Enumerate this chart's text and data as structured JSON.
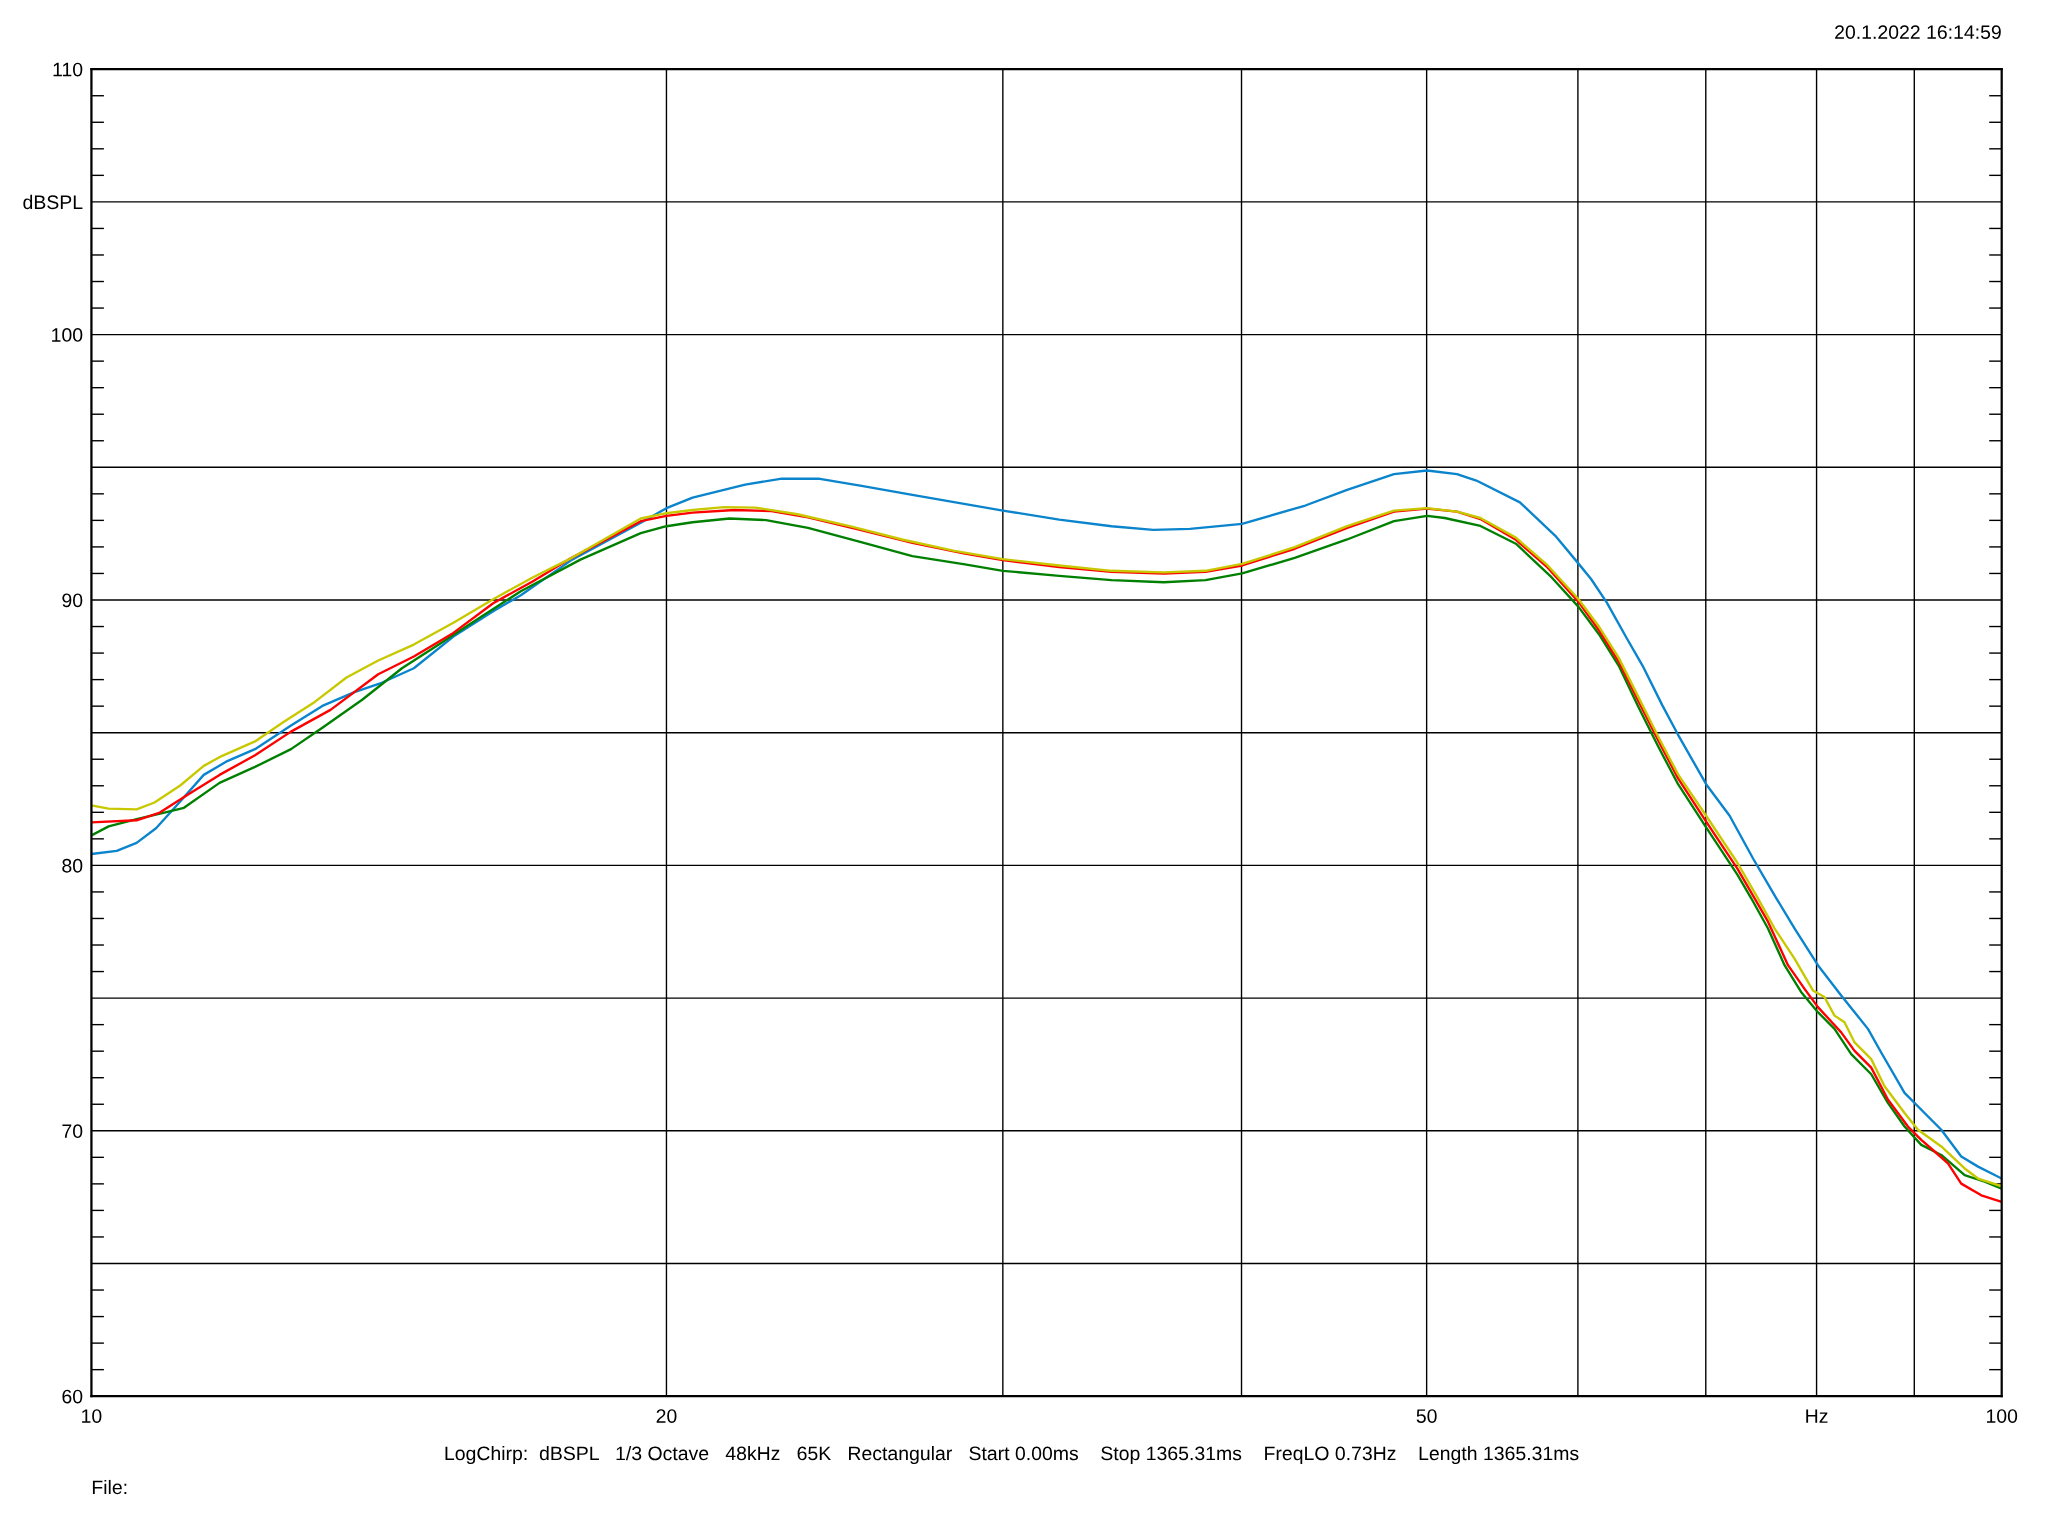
{
  "chart_data": {
    "type": "line",
    "log": "x",
    "grid": true,
    "xlim": [
      10,
      100
    ],
    "ylim": [
      60,
      110
    ],
    "xticks": [
      10,
      20,
      {
        "value": 30,
        "label": null
      },
      {
        "value": 40,
        "label": null
      },
      50,
      {
        "value": 60,
        "label": null
      },
      {
        "value": 70,
        "label": null
      },
      {
        "value": 80,
        "label": "Hz"
      },
      {
        "value": 90,
        "label": null
      },
      100
    ],
    "yticks": [
      60,
      {
        "value": 65,
        "label": null
      },
      70,
      {
        "value": 75,
        "label": null
      },
      80,
      {
        "value": 85,
        "label": null
      },
      90,
      {
        "value": 95,
        "label": null
      },
      100,
      {
        "value": 105,
        "label": "dBSPL"
      },
      110
    ],
    "annotations": [
      "20.1.2022 16:14:59",
      "LogChirp:  dBSPL   1/3 Octave   48kHz   65K   Rectangular   Start 0.00ms    Stop 1365.31ms    FreqLO 0.73Hz    Length 1365.31ms",
      "File:"
    ],
    "series": [
      {
        "color": "#0a84cc",
        "x": [
          10.0,
          10.31,
          10.56,
          10.81,
          11.07,
          11.45,
          11.78,
          12.18,
          12.72,
          13.21,
          13.73,
          14.19,
          14.75,
          15.47,
          16.23,
          16.78,
          17.85,
          19.39,
          20.0,
          20.64,
          21.99,
          22.98,
          24.02,
          25.26,
          26.9,
          30.0,
          32.11,
          34.2,
          35.96,
          37.59,
          40.03,
          43.2,
          45.43,
          48.07,
          50.03,
          51.86,
          53.09,
          55.95,
          58.39,
          60.03,
          60.96,
          62.13,
          63.64,
          64.87,
          66.43,
          67.7,
          70.03,
          72.04,
          74.13,
          76.2,
          77.9,
          80.13,
          82.41,
          85.11,
          86.48,
          88.95,
          91.12,
          92.98,
          95.24,
          97.19,
          100.0
        ],
        "values": [
          80.43,
          80.55,
          80.85,
          81.4,
          82.22,
          83.41,
          83.93,
          84.38,
          85.27,
          86.01,
          86.53,
          86.88,
          87.43,
          88.62,
          89.58,
          90.18,
          91.52,
          92.91,
          93.46,
          93.86,
          94.35,
          94.57,
          94.57,
          94.31,
          93.96,
          93.37,
          93.03,
          92.78,
          92.64,
          92.68,
          92.87,
          93.56,
          94.15,
          94.74,
          94.88,
          94.74,
          94.5,
          93.68,
          92.42,
          91.38,
          90.79,
          89.9,
          88.56,
          87.52,
          86.03,
          84.92,
          83.06,
          81.87,
          80.24,
          78.77,
          77.63,
          76.24,
          75.1,
          73.84,
          72.95,
          71.43,
          70.67,
          70.04,
          69.03,
          68.65,
          68.2
        ]
      },
      {
        "color": "#008000",
        "x": [
          10.0,
          10.21,
          10.56,
          10.92,
          11.18,
          11.67,
          12.18,
          12.72,
          13.21,
          13.86,
          14.54,
          15.25,
          15.99,
          16.78,
          18.03,
          19.39,
          20.0,
          20.64,
          21.58,
          22.55,
          23.72,
          25.26,
          26.9,
          28.66,
          30.0,
          32.11,
          34.2,
          36.42,
          38.3,
          40.03,
          42.65,
          45.43,
          48.07,
          50.03,
          51.1,
          53.35,
          55.68,
          58.12,
          60.03,
          61.54,
          63.03,
          64.55,
          66.11,
          67.7,
          70.03,
          72.73,
          73.93,
          75.44,
          76.97,
          78.52,
          80.13,
          81.75,
          83.41,
          85.45,
          87.18,
          88.95,
          90.76,
          92.98,
          95.63,
          97.97,
          100.0
        ],
        "values": [
          81.13,
          81.47,
          81.74,
          81.99,
          82.17,
          83.11,
          83.71,
          84.38,
          85.19,
          86.24,
          87.43,
          88.39,
          89.36,
          90.33,
          91.52,
          92.52,
          92.78,
          92.93,
          93.07,
          93.01,
          92.72,
          92.19,
          91.65,
          91.34,
          91.1,
          90.91,
          90.75,
          90.67,
          90.75,
          91.0,
          91.59,
          92.28,
          92.97,
          93.17,
          93.09,
          92.79,
          92.12,
          90.86,
          89.75,
          88.71,
          87.52,
          85.96,
          84.47,
          83.06,
          81.43,
          79.64,
          78.77,
          77.63,
          76.24,
          75.23,
          74.47,
          73.84,
          72.89,
          72.13,
          71.05,
          70.16,
          69.47,
          69.09,
          68.33,
          68.08,
          67.82
        ]
      },
      {
        "color": "#ff0000",
        "x": [
          10.0,
          10.56,
          10.86,
          11.23,
          11.67,
          12.18,
          12.72,
          13.34,
          14.13,
          14.75,
          15.47,
          16.23,
          17.02,
          17.77,
          19.39,
          20.0,
          20.64,
          21.71,
          22.7,
          23.72,
          25.26,
          26.9,
          28.66,
          30.0,
          32.11,
          34.2,
          36.42,
          38.3,
          40.03,
          42.65,
          45.43,
          48.07,
          50.03,
          51.86,
          53.35,
          55.68,
          57.84,
          60.03,
          61.54,
          63.03,
          64.55,
          66.11,
          67.7,
          70.03,
          72.73,
          74.23,
          75.44,
          77.29,
          78.85,
          80.13,
          82.41,
          83.75,
          85.45,
          87.18,
          89.31,
          90.76,
          92.23,
          93.73,
          95.24,
          97.57,
          100.0
        ],
        "values": [
          81.62,
          81.7,
          81.99,
          82.66,
          83.41,
          84.15,
          85.04,
          85.86,
          87.2,
          87.87,
          88.76,
          89.88,
          90.7,
          91.52,
          92.97,
          93.17,
          93.29,
          93.39,
          93.35,
          93.11,
          92.64,
          92.15,
          91.75,
          91.5,
          91.24,
          91.06,
          91.0,
          91.06,
          91.3,
          91.93,
          92.72,
          93.33,
          93.44,
          93.33,
          93.05,
          92.27,
          91.23,
          89.94,
          88.86,
          87.67,
          86.18,
          84.7,
          83.28,
          81.65,
          79.87,
          78.77,
          77.89,
          76.24,
          75.35,
          74.66,
          73.71,
          73.01,
          72.38,
          71.18,
          70.16,
          69.66,
          69.22,
          68.77,
          68.01,
          67.57,
          67.32
        ]
      },
      {
        "color": "#c8c800",
        "x": [
          10.0,
          10.21,
          10.56,
          10.79,
          11.13,
          11.45,
          11.7,
          12.18,
          12.6,
          13.09,
          13.6,
          14.13,
          14.75,
          15.47,
          16.23,
          17.02,
          17.77,
          19.39,
          20.0,
          20.64,
          21.44,
          22.27,
          23.42,
          24.94,
          26.57,
          28.3,
          30.0,
          32.11,
          34.2,
          36.42,
          38.3,
          40.03,
          42.65,
          45.43,
          48.07,
          50.03,
          51.86,
          53.35,
          55.68,
          57.84,
          60.03,
          61.54,
          63.03,
          64.55,
          66.11,
          67.7,
          70.03,
          72.73,
          74.53,
          76.04,
          77.9,
          79.65,
          80.76,
          81.75,
          82.74,
          83.75,
          85.45,
          86.83,
          88.95,
          90.4,
          92.98,
          95.63,
          97.19,
          100.0
        ],
        "values": [
          82.26,
          82.14,
          82.11,
          82.37,
          83.01,
          83.75,
          84.12,
          84.67,
          85.39,
          86.16,
          87.08,
          87.72,
          88.32,
          89.14,
          90.03,
          90.85,
          91.52,
          93.07,
          93.27,
          93.39,
          93.5,
          93.48,
          93.23,
          92.78,
          92.28,
          91.85,
          91.54,
          91.3,
          91.1,
          91.04,
          91.1,
          91.36,
          91.99,
          92.78,
          93.37,
          93.46,
          93.33,
          93.09,
          92.35,
          91.31,
          90.04,
          89.0,
          87.82,
          86.33,
          84.84,
          83.43,
          81.87,
          80.09,
          78.77,
          77.63,
          76.49,
          75.29,
          75.04,
          74.34,
          74.09,
          73.33,
          72.7,
          71.68,
          70.67,
          70.04,
          69.41,
          68.58,
          68.2,
          67.91
        ]
      }
    ]
  }
}
